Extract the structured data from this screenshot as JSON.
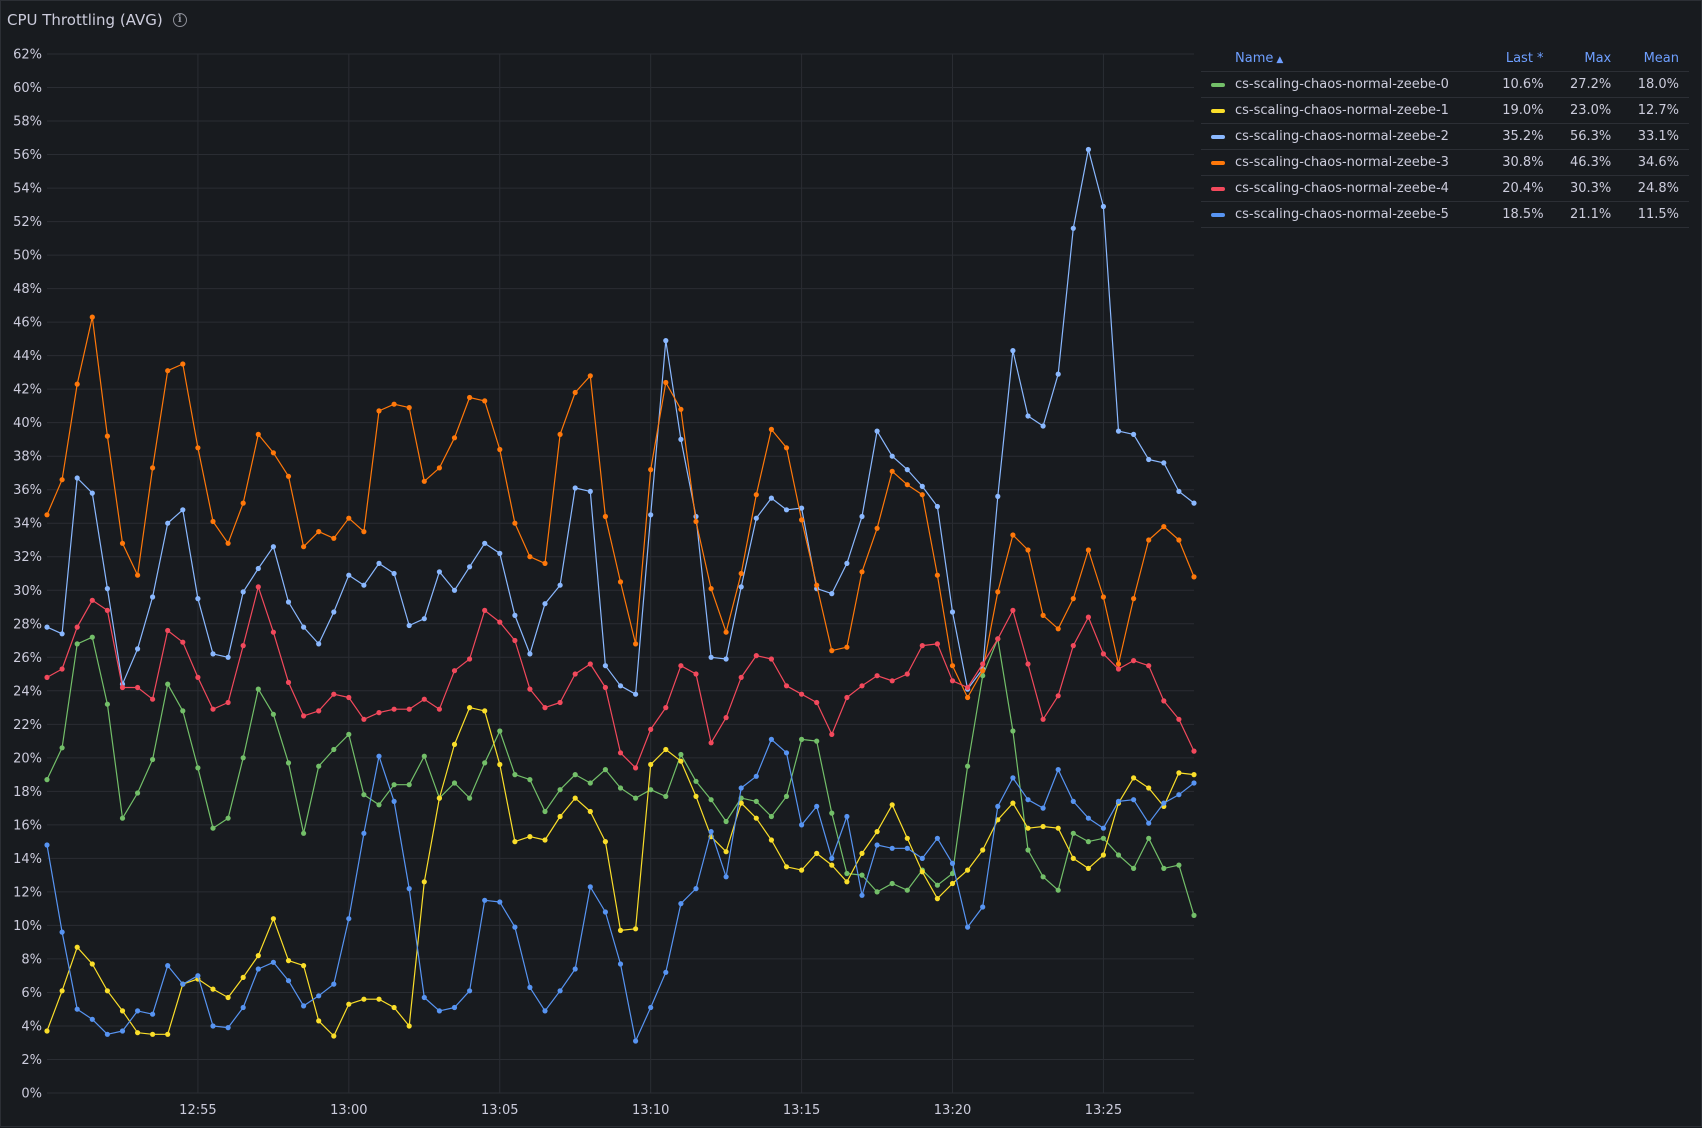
{
  "panel": {
    "title": "CPU Throttling (AVG)",
    "info_icon": "info-icon"
  },
  "legend": {
    "headers": {
      "name": "Name",
      "last": "Last *",
      "max": "Max",
      "mean": "Mean"
    },
    "rows": [
      {
        "name": "cs-scaling-chaos-normal-zeebe-0",
        "last": "10.6%",
        "max": "27.2%",
        "mean": "18.0%",
        "color": "#73bf69"
      },
      {
        "name": "cs-scaling-chaos-normal-zeebe-1",
        "last": "19.0%",
        "max": "23.0%",
        "mean": "12.7%",
        "color": "#fade2a"
      },
      {
        "name": "cs-scaling-chaos-normal-zeebe-2",
        "last": "35.2%",
        "max": "56.3%",
        "mean": "33.1%",
        "color": "#8ab8ff"
      },
      {
        "name": "cs-scaling-chaos-normal-zeebe-3",
        "last": "30.8%",
        "max": "46.3%",
        "mean": "34.6%",
        "color": "#ff780a"
      },
      {
        "name": "cs-scaling-chaos-normal-zeebe-4",
        "last": "20.4%",
        "max": "30.3%",
        "mean": "24.8%",
        "color": "#f2495c"
      },
      {
        "name": "cs-scaling-chaos-normal-zeebe-5",
        "last": "18.5%",
        "max": "21.1%",
        "mean": "11.5%",
        "color": "#5794f2"
      }
    ]
  },
  "chart_data": {
    "type": "line",
    "x_start": "12:50:00",
    "x_step_seconds": 30,
    "ylim": [
      0,
      62
    ],
    "y_ticks": [
      "0%",
      "2%",
      "4%",
      "6%",
      "8%",
      "10%",
      "12%",
      "14%",
      "16%",
      "18%",
      "20%",
      "22%",
      "24%",
      "26%",
      "28%",
      "30%",
      "32%",
      "34%",
      "36%",
      "38%",
      "40%",
      "42%",
      "44%",
      "46%",
      "48%",
      "50%",
      "52%",
      "54%",
      "56%",
      "58%",
      "60%",
      "62%"
    ],
    "x_ticks": [
      {
        "label": "12:55",
        "time": "12:55"
      },
      {
        "label": "13:00",
        "time": "13:00"
      },
      {
        "label": "13:05",
        "time": "13:05"
      },
      {
        "label": "13:10",
        "time": "13:10"
      },
      {
        "label": "13:15",
        "time": "13:15"
      },
      {
        "label": "13:20",
        "time": "13:20"
      },
      {
        "label": "13:25",
        "time": "13:25"
      }
    ],
    "grid": true,
    "legend_position": "right",
    "series": [
      {
        "name": "cs-scaling-chaos-normal-zeebe-0",
        "color": "#73bf69",
        "values": [
          18.7,
          20.6,
          26.8,
          27.2,
          23.2,
          16.4,
          17.9,
          19.9,
          24.4,
          22.8,
          19.4,
          15.8,
          16.4,
          20.0,
          24.1,
          22.6,
          19.7,
          15.5,
          19.5,
          20.5,
          21.4,
          17.8,
          17.2,
          18.4,
          18.4,
          20.1,
          17.6,
          18.5,
          17.6,
          19.7,
          21.6,
          19.0,
          18.7,
          16.8,
          18.1,
          19.0,
          18.5,
          19.3,
          18.2,
          17.6,
          18.1,
          17.7,
          20.2,
          18.6,
          17.5,
          16.2,
          17.6,
          17.4,
          16.5,
          17.7,
          21.1,
          21.0,
          16.7,
          13.1,
          13.0,
          12.0,
          12.5,
          12.1,
          13.3,
          12.4,
          13.1,
          19.5,
          24.9,
          27.1,
          21.6,
          14.5,
          12.9,
          12.1,
          15.5,
          15.0,
          15.2,
          14.2,
          13.4,
          15.2,
          13.4,
          13.6,
          10.6
        ]
      },
      {
        "name": "cs-scaling-chaos-normal-zeebe-1",
        "color": "#fade2a",
        "values": [
          3.7,
          6.1,
          8.7,
          7.7,
          6.1,
          4.9,
          3.6,
          3.5,
          3.5,
          6.5,
          6.8,
          6.2,
          5.7,
          6.9,
          8.2,
          10.4,
          7.9,
          7.6,
          4.3,
          3.4,
          5.3,
          5.6,
          5.6,
          5.1,
          4.0,
          12.6,
          17.6,
          20.8,
          23.0,
          22.8,
          19.6,
          15.0,
          15.3,
          15.1,
          16.5,
          17.6,
          16.8,
          15.0,
          9.7,
          9.8,
          19.6,
          20.5,
          19.8,
          17.7,
          15.3,
          14.4,
          17.3,
          16.4,
          15.1,
          13.5,
          13.3,
          14.3,
          13.6,
          12.6,
          14.3,
          15.6,
          17.2,
          15.2,
          13.2,
          11.6,
          12.5,
          13.3,
          14.5,
          16.3,
          17.3,
          15.8,
          15.9,
          15.8,
          14.0,
          13.4,
          14.2,
          17.3,
          18.8,
          18.2,
          17.1,
          19.1,
          19.0
        ]
      },
      {
        "name": "cs-scaling-chaos-normal-zeebe-2",
        "color": "#8ab8ff",
        "values": [
          27.8,
          27.4,
          36.7,
          35.8,
          30.1,
          24.4,
          26.5,
          29.6,
          34.0,
          34.8,
          29.5,
          26.2,
          26.0,
          29.9,
          31.3,
          32.6,
          29.3,
          27.8,
          26.8,
          28.7,
          30.9,
          30.3,
          31.6,
          31.0,
          27.9,
          28.3,
          31.1,
          30.0,
          31.4,
          32.8,
          32.2,
          28.5,
          26.2,
          29.2,
          30.3,
          36.1,
          35.9,
          25.5,
          24.3,
          23.8,
          34.5,
          44.9,
          39.0,
          34.4,
          26.0,
          25.9,
          30.2,
          34.3,
          35.5,
          34.8,
          34.9,
          30.1,
          29.8,
          31.6,
          34.4,
          39.5,
          38.0,
          37.2,
          36.2,
          35.0,
          28.7,
          24.1,
          25.3,
          35.6,
          44.3,
          40.4,
          39.8,
          42.9,
          51.6,
          56.3,
          52.9,
          39.5,
          39.3,
          37.8,
          37.6,
          35.9,
          35.2
        ]
      },
      {
        "name": "cs-scaling-chaos-normal-zeebe-3",
        "color": "#ff780a",
        "values": [
          34.5,
          36.6,
          42.3,
          46.3,
          39.2,
          32.8,
          30.9,
          37.3,
          43.1,
          43.5,
          38.5,
          34.1,
          32.8,
          35.2,
          39.3,
          38.2,
          36.8,
          32.6,
          33.5,
          33.1,
          34.3,
          33.5,
          40.7,
          41.1,
          40.9,
          36.5,
          37.3,
          39.1,
          41.5,
          41.3,
          38.4,
          34.0,
          32.0,
          31.6,
          39.3,
          41.8,
          42.8,
          34.4,
          30.5,
          26.8,
          37.2,
          42.4,
          40.8,
          34.1,
          30.1,
          27.5,
          31.0,
          35.7,
          39.6,
          38.5,
          34.2,
          30.3,
          26.4,
          26.6,
          31.1,
          33.7,
          37.1,
          36.3,
          35.7,
          30.9,
          25.5,
          23.6,
          25.2,
          29.9,
          33.3,
          32.4,
          28.5,
          27.7,
          29.5,
          32.4,
          29.6,
          25.6,
          29.5,
          33.0,
          33.8,
          33.0,
          30.8
        ]
      },
      {
        "name": "cs-scaling-chaos-normal-zeebe-4",
        "color": "#f2495c",
        "values": [
          24.8,
          25.3,
          27.8,
          29.4,
          28.8,
          24.2,
          24.2,
          23.5,
          27.6,
          26.9,
          24.8,
          22.9,
          23.3,
          26.7,
          30.2,
          27.5,
          24.5,
          22.5,
          22.8,
          23.8,
          23.6,
          22.3,
          22.7,
          22.9,
          22.9,
          23.5,
          22.9,
          25.2,
          25.9,
          28.8,
          28.1,
          27.0,
          24.1,
          23.0,
          23.3,
          25.0,
          25.6,
          24.2,
          20.3,
          19.4,
          21.7,
          23.0,
          25.5,
          25.0,
          20.9,
          22.4,
          24.8,
          26.1,
          25.9,
          24.3,
          23.8,
          23.3,
          21.4,
          23.6,
          24.3,
          24.9,
          24.6,
          25.0,
          26.7,
          26.8,
          24.6,
          24.2,
          25.6,
          27.1,
          28.8,
          25.6,
          22.3,
          23.7,
          26.7,
          28.4,
          26.2,
          25.3,
          25.8,
          25.5,
          23.4,
          22.3,
          20.4
        ]
      },
      {
        "name": "cs-scaling-chaos-normal-zeebe-5",
        "color": "#5794f2",
        "values": [
          14.8,
          9.6,
          5.0,
          4.4,
          3.5,
          3.7,
          4.9,
          4.7,
          7.6,
          6.5,
          7.0,
          4.0,
          3.9,
          5.1,
          7.4,
          7.8,
          6.7,
          5.2,
          5.8,
          6.5,
          10.4,
          15.5,
          20.1,
          17.4,
          12.2,
          5.7,
          4.9,
          5.1,
          6.1,
          11.5,
          11.4,
          9.9,
          6.3,
          4.9,
          6.1,
          7.4,
          12.3,
          10.8,
          7.7,
          3.1,
          5.1,
          7.2,
          11.3,
          12.2,
          15.6,
          12.9,
          18.2,
          18.9,
          21.1,
          20.3,
          16.0,
          17.1,
          14.0,
          16.5,
          11.8,
          14.8,
          14.6,
          14.6,
          14.0,
          15.2,
          13.7,
          9.9,
          11.1,
          17.1,
          18.8,
          17.5,
          17.0,
          19.3,
          17.4,
          16.4,
          15.8,
          17.4,
          17.5,
          16.1,
          17.3,
          17.8,
          18.5
        ]
      }
    ]
  }
}
